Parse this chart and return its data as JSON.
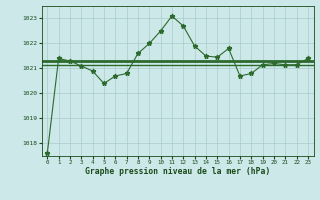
{
  "x": [
    0,
    1,
    2,
    3,
    4,
    5,
    6,
    7,
    8,
    9,
    10,
    11,
    12,
    13,
    14,
    15,
    16,
    17,
    18,
    19,
    20,
    21,
    22,
    23
  ],
  "y_line": [
    1017.6,
    1021.4,
    1021.3,
    1021.1,
    1020.9,
    1020.4,
    1020.7,
    1020.8,
    1021.6,
    1022.0,
    1022.5,
    1023.1,
    1022.7,
    1021.9,
    1021.5,
    1021.45,
    1021.8,
    1020.7,
    1020.8,
    1021.15,
    1021.2,
    1021.15,
    1021.15,
    1021.4
  ],
  "y_hline1": 1021.3,
  "y_hline2": 1021.15,
  "ylim": [
    1017.5,
    1023.5
  ],
  "yticks": [
    1018,
    1019,
    1020,
    1021,
    1022,
    1023
  ],
  "xticks": [
    0,
    1,
    2,
    3,
    4,
    5,
    6,
    7,
    8,
    9,
    10,
    11,
    12,
    13,
    14,
    15,
    16,
    17,
    18,
    19,
    20,
    21,
    22,
    23
  ],
  "xlabel": "Graphe pression niveau de la mer (hPa)",
  "line_color": "#2d6a2d",
  "hline_color": "#2d6a2d",
  "marker_color": "#2d6a2d",
  "bg_color": "#cce8e8",
  "grid_color": "#aacccc",
  "text_color": "#1a4a1a",
  "title_color": "#1a4a1a"
}
